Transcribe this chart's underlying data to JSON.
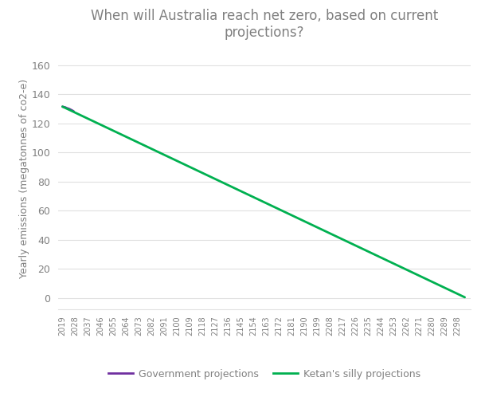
{
  "title": "When will Australia reach net zero, based on current\nprojections?",
  "title_fontsize": 12,
  "ylabel": "Yearly emissions (megatonnes of co2-e)",
  "ylabel_fontsize": 9,
  "ylim": [
    -8,
    172
  ],
  "yticks": [
    0,
    20,
    40,
    60,
    80,
    100,
    120,
    140,
    160
  ],
  "gov_x": [
    2019,
    2020,
    2021,
    2022,
    2023,
    2024,
    2025,
    2026,
    2027
  ],
  "gov_y": [
    131.5,
    131.2,
    131.0,
    130.5,
    130.2,
    129.8,
    129.3,
    128.8,
    128.2
  ],
  "silly_x_start": 2019,
  "silly_x_end": 2303,
  "silly_y_start": 131.5,
  "silly_y_end": 0.5,
  "xtick_start": 2019,
  "xtick_step": 9,
  "xtick_end": 2298,
  "xlim_start": 2016,
  "xlim_end": 2307,
  "gov_color": "#7030a0",
  "silly_color": "#00b050",
  "bg_color": "#ffffff",
  "grid_color": "#e0e0e0",
  "tick_color": "#808080",
  "title_color": "#808080",
  "legend_gov": "Government projections",
  "legend_silly": "Ketan's silly projections",
  "figsize": [
    6.09,
    4.98
  ],
  "dpi": 100
}
